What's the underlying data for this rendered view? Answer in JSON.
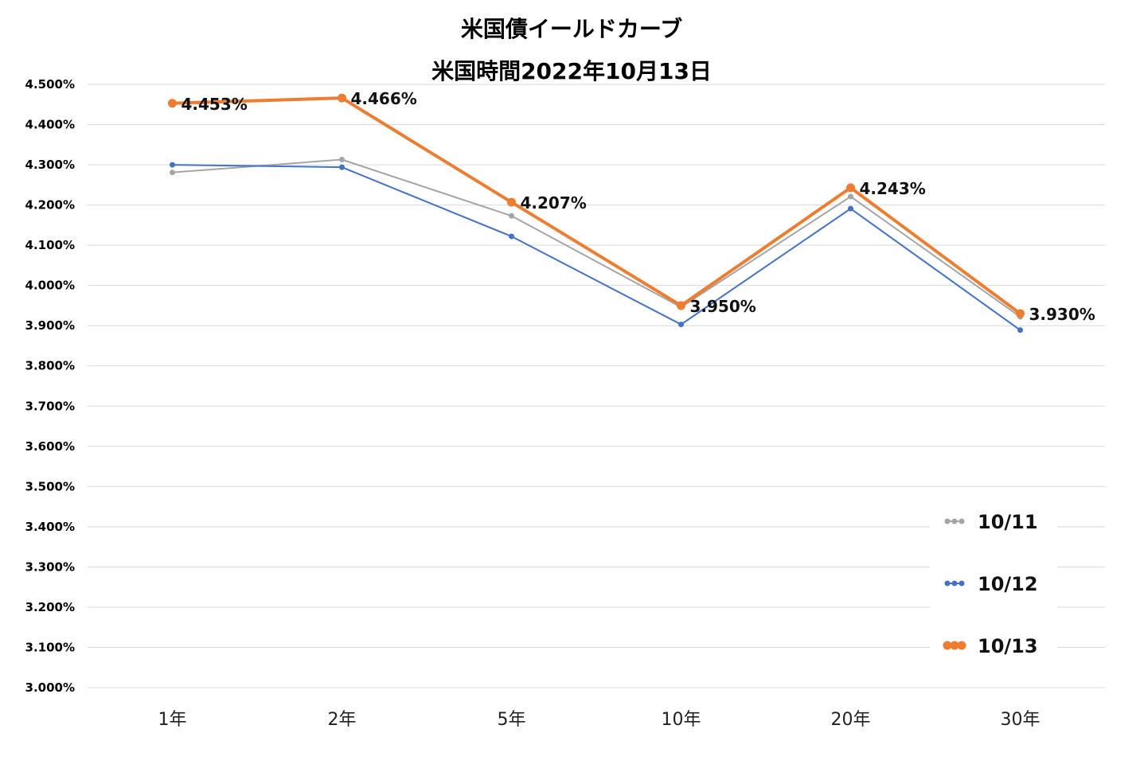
{
  "chart_data": {
    "type": "line",
    "title": "米国債イールドカーブ",
    "subtitle": "米国時間2022年10月13日",
    "xlabel": "",
    "ylabel": "",
    "categories": [
      "1年",
      "2年",
      "5年",
      "10年",
      "20年",
      "30年"
    ],
    "ylim": [
      3.0,
      4.5
    ],
    "yticks": [
      "3.000%",
      "3.100%",
      "3.200%",
      "3.300%",
      "3.400%",
      "3.500%",
      "3.600%",
      "3.700%",
      "3.800%",
      "3.900%",
      "4.000%",
      "4.100%",
      "4.200%",
      "4.300%",
      "4.400%",
      "4.500%"
    ],
    "grid": "horizontal",
    "legend_position": "bottom-right",
    "series": [
      {
        "name": "10/11",
        "color": "#A5A5A5",
        "values": [
          4.281,
          4.313,
          4.173,
          3.946,
          4.221,
          3.922
        ]
      },
      {
        "name": "10/12",
        "color": "#4472C4",
        "values": [
          4.3,
          4.294,
          4.122,
          3.903,
          4.191,
          3.889
        ]
      },
      {
        "name": "10/13",
        "color": "#ED7D31",
        "values": [
          4.453,
          4.466,
          4.207,
          3.95,
          4.243,
          3.93
        ],
        "data_labels": [
          "4.453%",
          "4.466%",
          "4.207%",
          "3.950%",
          "4.243%",
          "3.930%"
        ]
      }
    ]
  }
}
